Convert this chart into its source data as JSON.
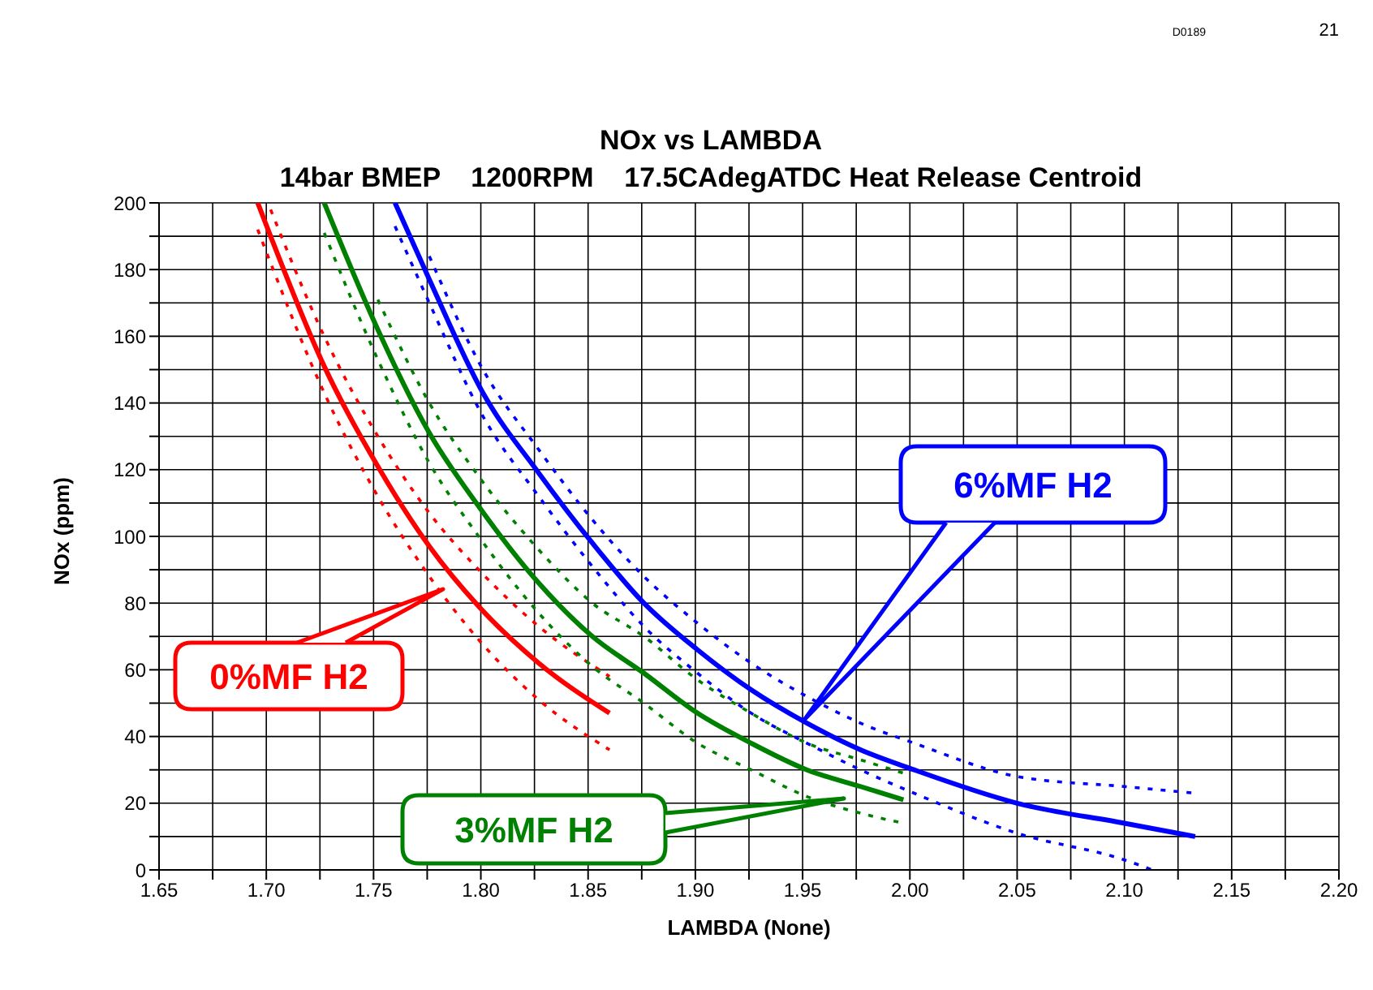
{
  "chart_data": {
    "type": "line",
    "title": "NOx vs LAMBDA",
    "subtitle": "14bar BMEP    1200RPM    17.5CAdegATDC Heat Release Centroid",
    "xlabel": "LAMBDA (None)",
    "ylabel": "NOx (ppm)",
    "annotations": [
      "D0189",
      "21"
    ],
    "xlim": [
      1.65,
      2.2
    ],
    "ylim": [
      0,
      200
    ],
    "xticks": [
      {
        "value": 1.65,
        "label": "1.65"
      },
      {
        "value": 1.675,
        "label": null
      },
      {
        "value": 1.7,
        "label": "1.70"
      },
      {
        "value": 1.725,
        "label": null
      },
      {
        "value": 1.75,
        "label": "1.75"
      },
      {
        "value": 1.775,
        "label": null
      },
      {
        "value": 1.8,
        "label": "1.80"
      },
      {
        "value": 1.825,
        "label": null
      },
      {
        "value": 1.85,
        "label": "1.85"
      },
      {
        "value": 1.875,
        "label": null
      },
      {
        "value": 1.9,
        "label": "1.90"
      },
      {
        "value": 1.925,
        "label": null
      },
      {
        "value": 1.95,
        "label": "1.95"
      },
      {
        "value": 1.975,
        "label": null
      },
      {
        "value": 2.0,
        "label": "2.00"
      },
      {
        "value": 2.025,
        "label": null
      },
      {
        "value": 2.05,
        "label": "2.05"
      },
      {
        "value": 2.075,
        "label": null
      },
      {
        "value": 2.1,
        "label": "2.10"
      },
      {
        "value": 2.125,
        "label": null
      },
      {
        "value": 2.15,
        "label": "2.15"
      },
      {
        "value": 2.175,
        "label": null
      },
      {
        "value": 2.2,
        "label": "2.20"
      }
    ],
    "yticks": [
      0,
      {
        "value": 10,
        "label": null
      },
      20,
      {
        "value": 30,
        "label": null
      },
      40,
      {
        "value": 50,
        "label": null
      },
      60,
      {
        "value": 70,
        "label": null
      },
      80,
      {
        "value": 90,
        "label": null
      },
      100,
      {
        "value": 110,
        "label": null
      },
      120,
      {
        "value": 130,
        "label": null
      },
      140,
      {
        "value": 150,
        "label": null
      },
      160,
      {
        "value": 170,
        "label": null
      },
      180,
      {
        "value": 190,
        "label": null
      },
      200
    ],
    "grid": true,
    "series": [
      {
        "name": "0%MF H2",
        "color": "#ff0000",
        "x": [
          1.696,
          1.702,
          1.727,
          1.752,
          1.776,
          1.799,
          1.827,
          1.86
        ],
        "values": [
          200,
          190,
          151,
          121,
          97,
          79,
          62,
          47
        ]
      },
      {
        "color": "#ff0000",
        "line_style": "dotted",
        "x": [
          1.696,
          1.702,
          1.727,
          1.752,
          1.776,
          1.799,
          1.827,
          1.86
        ],
        "values": [
          192,
          182,
          143,
          112,
          88,
          69,
          51,
          36
        ]
      },
      {
        "color": "#ff0000",
        "line_style": "dotted",
        "x": [
          1.702,
          1.727,
          1.752,
          1.776,
          1.799,
          1.827,
          1.86
        ],
        "values": [
          198,
          160,
          130,
          107,
          90,
          73,
          58
        ]
      },
      {
        "name": "3%MF H2",
        "color": "#008000",
        "x": [
          1.727,
          1.752,
          1.776,
          1.799,
          1.827,
          1.852,
          1.876,
          1.901,
          1.926,
          1.952,
          1.977,
          1.997
        ],
        "values": [
          200,
          162,
          131,
          109,
          86,
          70,
          59,
          47,
          38,
          30,
          25,
          21
        ]
      },
      {
        "color": "#008000",
        "line_style": "dotted",
        "x": [
          1.727,
          1.752,
          1.776,
          1.799,
          1.827,
          1.852,
          1.876,
          1.901,
          1.926,
          1.952,
          1.977,
          1.997
        ],
        "values": [
          191,
          153,
          122,
          100,
          77,
          61,
          50,
          38,
          30,
          22,
          17,
          14
        ]
      },
      {
        "color": "#008000",
        "line_style": "dotted",
        "x": [
          1.752,
          1.776,
          1.799,
          1.827,
          1.852,
          1.876,
          1.901,
          1.926,
          1.952,
          1.977,
          1.997
        ],
        "values": [
          171,
          140,
          118,
          96,
          80,
          70,
          57,
          47,
          38,
          33,
          29
        ]
      },
      {
        "name": "6%MF H2",
        "color": "#0000ff",
        "x": [
          1.76,
          1.776,
          1.801,
          1.827,
          1.852,
          1.876,
          1.901,
          1.926,
          1.952,
          1.977,
          2.002,
          2.05,
          2.1,
          2.133
        ],
        "values": [
          200,
          177,
          143,
          119,
          98,
          80,
          66,
          54,
          44,
          36,
          30,
          20,
          14,
          10
        ]
      },
      {
        "color": "#0000ff",
        "line_style": "dotted",
        "x": [
          1.76,
          1.776,
          1.801,
          1.827,
          1.852,
          1.876,
          1.901,
          1.926,
          1.952,
          1.977,
          2.002,
          2.05,
          2.1,
          2.113
        ],
        "values": [
          193,
          170,
          136,
          112,
          91,
          73,
          59,
          47,
          38,
          30,
          23,
          11,
          3,
          0
        ]
      },
      {
        "color": "#0000ff",
        "line_style": "dotted",
        "x": [
          1.776,
          1.801,
          1.827,
          1.852,
          1.876,
          1.901,
          1.926,
          1.952,
          1.977,
          2.002,
          2.05,
          2.1,
          2.133
        ],
        "values": [
          184,
          150,
          126,
          105,
          88,
          74,
          62,
          52,
          44,
          38,
          28,
          25,
          23
        ]
      }
    ]
  }
}
